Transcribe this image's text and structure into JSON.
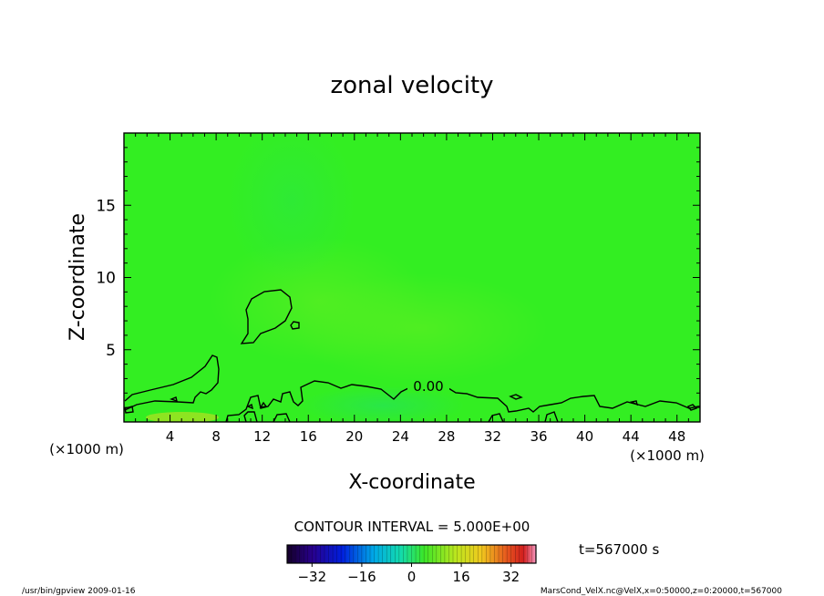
{
  "chart_data": {
    "type": "heatmap",
    "title": "zonal velocity",
    "xlabel": "X-coordinate",
    "ylabel": "Z-coordinate",
    "x_unit": "(×1000 m)",
    "y_unit": "(×1000 m)",
    "xlim": [
      0,
      50
    ],
    "ylim": [
      0,
      20
    ],
    "x_ticks": [
      4,
      8,
      12,
      16,
      20,
      24,
      28,
      32,
      36,
      40,
      44,
      48
    ],
    "y_ticks": [
      5,
      10,
      15
    ],
    "contour_label": "0.00",
    "contour_interval": "CONTOUR INTERVAL = 5.000E+00",
    "time_label": "t=567000 s",
    "colorbar": {
      "min": -40,
      "max": 40,
      "ticks": [
        -32,
        -16,
        0,
        16,
        32
      ]
    },
    "fill_color": "#33ee22"
  },
  "footer": {
    "left": "/usr/bin/gpview   2009-01-16",
    "right": "MarsCond_VelX.nc@VelX,x=0:50000,z=0:20000,t=567000"
  }
}
